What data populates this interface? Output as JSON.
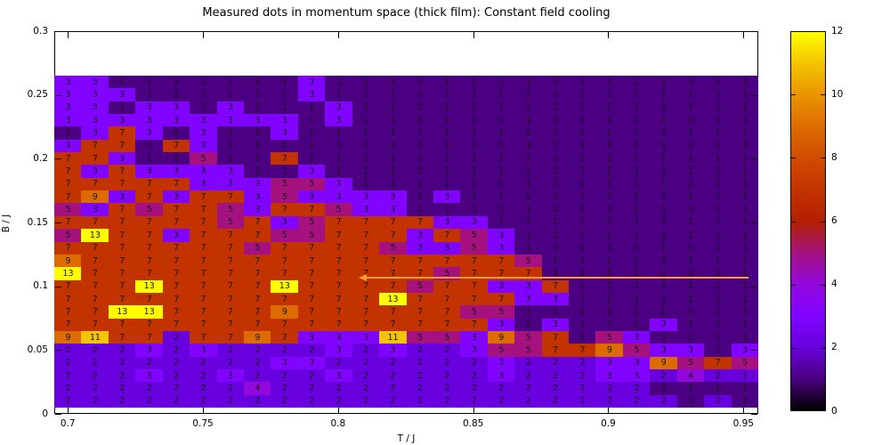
{
  "title": "Measured dots in momentum space (thick film): Constant field cooling",
  "chart_data": {
    "type": "heatmap",
    "title": "Measured dots in momentum space (thick film): Constant field cooling",
    "xlabel": "T / J",
    "ylabel": "B / J",
    "xlim": [
      0.695,
      0.9555
    ],
    "ylim": [
      0,
      0.3
    ],
    "x_ticks": [
      "0.7",
      "0.75",
      "0.8",
      "0.85",
      "0.9",
      "0.95"
    ],
    "y_ticks": [
      "0",
      "0.05",
      "0.1",
      "0.15",
      "0.2",
      "0.25",
      "0.3"
    ],
    "x_values": [
      0.7,
      0.71,
      0.72,
      0.73,
      0.74,
      0.75,
      0.76,
      0.77,
      0.78,
      0.79,
      0.8,
      0.81,
      0.82,
      0.83,
      0.84,
      0.85,
      0.86,
      0.87,
      0.88,
      0.89,
      0.9,
      0.91,
      0.92,
      0.93,
      0.94,
      0.95
    ],
    "y_values": [
      0.26,
      0.25,
      0.24,
      0.23,
      0.22,
      0.21,
      0.2,
      0.19,
      0.18,
      0.17,
      0.16,
      0.15,
      0.14,
      0.13,
      0.12,
      0.11,
      0.1,
      0.09,
      0.08,
      0.07,
      0.06,
      0.05,
      0.04,
      0.03,
      0.02,
      0.01
    ],
    "values": [
      [
        3,
        3,
        1,
        1,
        1,
        1,
        1,
        1,
        1,
        3,
        1,
        1,
        1,
        1,
        1,
        1,
        1,
        1,
        1,
        1,
        1,
        1,
        1,
        1,
        1,
        1
      ],
      [
        3,
        3,
        3,
        1,
        1,
        1,
        1,
        1,
        1,
        3,
        1,
        1,
        1,
        1,
        1,
        1,
        1,
        1,
        1,
        1,
        1,
        1,
        1,
        1,
        1,
        1
      ],
      [
        3,
        3,
        1,
        3,
        3,
        1,
        3,
        1,
        1,
        1,
        3,
        1,
        1,
        1,
        1,
        1,
        1,
        1,
        1,
        1,
        1,
        1,
        1,
        1,
        1,
        1
      ],
      [
        3,
        3,
        3,
        3,
        3,
        3,
        3,
        3,
        3,
        1,
        3,
        1,
        1,
        1,
        1,
        1,
        1,
        1,
        1,
        1,
        1,
        1,
        1,
        1,
        1,
        1
      ],
      [
        1,
        3,
        7,
        3,
        1,
        3,
        1,
        1,
        3,
        1,
        1,
        1,
        1,
        1,
        1,
        1,
        1,
        1,
        1,
        1,
        1,
        1,
        1,
        1,
        1,
        1
      ],
      [
        3,
        7,
        7,
        1,
        7,
        3,
        1,
        1,
        1,
        1,
        1,
        1,
        1,
        1,
        1,
        1,
        1,
        1,
        1,
        1,
        1,
        1,
        1,
        1,
        1,
        1
      ],
      [
        7,
        7,
        3,
        1,
        1,
        5,
        1,
        1,
        7,
        1,
        1,
        1,
        1,
        1,
        1,
        1,
        1,
        1,
        1,
        1,
        1,
        1,
        1,
        1,
        1,
        1
      ],
      [
        7,
        3,
        7,
        3,
        3,
        3,
        3,
        1,
        1,
        3,
        1,
        1,
        1,
        1,
        1,
        1,
        1,
        1,
        1,
        1,
        1,
        1,
        1,
        1,
        1,
        1
      ],
      [
        7,
        7,
        7,
        7,
        7,
        3,
        3,
        3,
        5,
        5,
        3,
        1,
        1,
        1,
        1,
        1,
        1,
        1,
        1,
        1,
        1,
        1,
        1,
        1,
        1,
        1
      ],
      [
        7,
        9,
        3,
        7,
        3,
        7,
        7,
        3,
        5,
        3,
        3,
        3,
        3,
        1,
        3,
        1,
        1,
        1,
        1,
        1,
        1,
        1,
        1,
        1,
        1,
        1
      ],
      [
        5,
        3,
        7,
        5,
        7,
        7,
        5,
        3,
        7,
        7,
        5,
        3,
        3,
        1,
        1,
        1,
        1,
        1,
        1,
        1,
        1,
        1,
        1,
        1,
        1,
        1
      ],
      [
        7,
        7,
        7,
        7,
        7,
        7,
        5,
        7,
        3,
        5,
        7,
        7,
        7,
        7,
        3,
        3,
        1,
        1,
        1,
        1,
        1,
        1,
        1,
        1,
        1,
        1
      ],
      [
        5,
        13,
        7,
        7,
        3,
        7,
        7,
        7,
        5,
        5,
        7,
        7,
        7,
        3,
        7,
        5,
        3,
        1,
        1,
        1,
        1,
        1,
        1,
        1,
        1,
        1
      ],
      [
        7,
        7,
        7,
        7,
        7,
        7,
        7,
        5,
        7,
        7,
        7,
        7,
        5,
        3,
        3,
        5,
        3,
        1,
        1,
        1,
        1,
        1,
        1,
        1,
        1,
        1
      ],
      [
        9,
        7,
        7,
        7,
        7,
        7,
        7,
        7,
        7,
        7,
        7,
        7,
        7,
        7,
        7,
        7,
        7,
        5,
        1,
        1,
        1,
        1,
        1,
        1,
        1,
        1
      ],
      [
        13,
        7,
        7,
        7,
        7,
        7,
        7,
        7,
        7,
        7,
        7,
        7,
        7,
        7,
        5,
        7,
        7,
        7,
        1,
        1,
        1,
        1,
        1,
        1,
        1,
        1
      ],
      [
        7,
        7,
        7,
        13,
        7,
        7,
        7,
        7,
        13,
        7,
        7,
        7,
        7,
        5,
        7,
        7,
        3,
        3,
        7,
        1,
        1,
        1,
        1,
        1,
        1,
        1
      ],
      [
        7,
        7,
        7,
        7,
        7,
        7,
        7,
        7,
        7,
        7,
        7,
        7,
        13,
        7,
        7,
        7,
        7,
        3,
        3,
        1,
        1,
        1,
        1,
        1,
        1,
        1
      ],
      [
        7,
        7,
        13,
        13,
        7,
        7,
        7,
        7,
        9,
        7,
        7,
        7,
        7,
        7,
        7,
        5,
        5,
        1,
        1,
        1,
        1,
        1,
        1,
        1,
        1,
        1
      ],
      [
        7,
        7,
        7,
        7,
        7,
        7,
        7,
        7,
        7,
        7,
        7,
        7,
        7,
        7,
        7,
        7,
        3,
        1,
        3,
        1,
        1,
        1,
        3,
        1,
        1,
        1
      ],
      [
        9,
        11,
        7,
        7,
        2,
        7,
        7,
        9,
        7,
        3,
        3,
        3,
        11,
        5,
        5,
        3,
        9,
        5,
        7,
        1,
        5,
        3,
        1,
        1,
        1,
        1
      ],
      [
        2,
        2,
        2,
        3,
        2,
        3,
        2,
        2,
        2,
        2,
        3,
        2,
        3,
        2,
        2,
        3,
        5,
        5,
        7,
        7,
        9,
        5,
        3,
        3,
        1,
        3
      ],
      [
        2,
        2,
        2,
        2,
        2,
        2,
        2,
        2,
        3,
        3,
        2,
        2,
        2,
        2,
        2,
        2,
        3,
        2,
        2,
        2,
        3,
        3,
        9,
        5,
        7,
        5
      ],
      [
        2,
        2,
        2,
        3,
        2,
        2,
        3,
        2,
        2,
        2,
        3,
        2,
        2,
        2,
        2,
        2,
        3,
        2,
        2,
        2,
        3,
        3,
        2,
        4,
        2,
        2
      ],
      [
        2,
        2,
        2,
        2,
        2,
        2,
        2,
        4,
        2,
        2,
        2,
        2,
        2,
        2,
        2,
        2,
        2,
        2,
        2,
        2,
        2,
        2,
        1,
        1,
        1,
        1
      ],
      [
        2,
        2,
        2,
        2,
        2,
        2,
        2,
        2,
        2,
        2,
        2,
        2,
        2,
        2,
        2,
        2,
        2,
        2,
        2,
        2,
        2,
        2,
        2,
        1,
        2,
        1
      ]
    ],
    "value_colors": {
      "1": "#4A0080",
      "2": "#6801DD",
      "3": "#8004FF",
      "4": "#9309DD",
      "5": "#A51280",
      "7": "#C33300",
      "9": "#DD6C00",
      "11": "#F4C400",
      "13": "#FFFF00"
    },
    "colorbar": {
      "min": 0,
      "max": 12,
      "ticks": [
        "0",
        "2",
        "4",
        "6",
        "8",
        "10",
        "12"
      ],
      "gradient_stops": [
        "#000000",
        "#4A0080",
        "#6801DD",
        "#8004FF",
        "#9309DD",
        "#A51280",
        "#B42000",
        "#C33300",
        "#D04C00",
        "#DD6C00",
        "#E99400",
        "#F4C400",
        "#FFFF00"
      ]
    },
    "annotation_arrow": {
      "y": 0.107,
      "x_tip": 0.808,
      "x_tail": 0.952,
      "color": "#FFA028"
    },
    "legend_position": "right-colorbar",
    "grid": false
  }
}
